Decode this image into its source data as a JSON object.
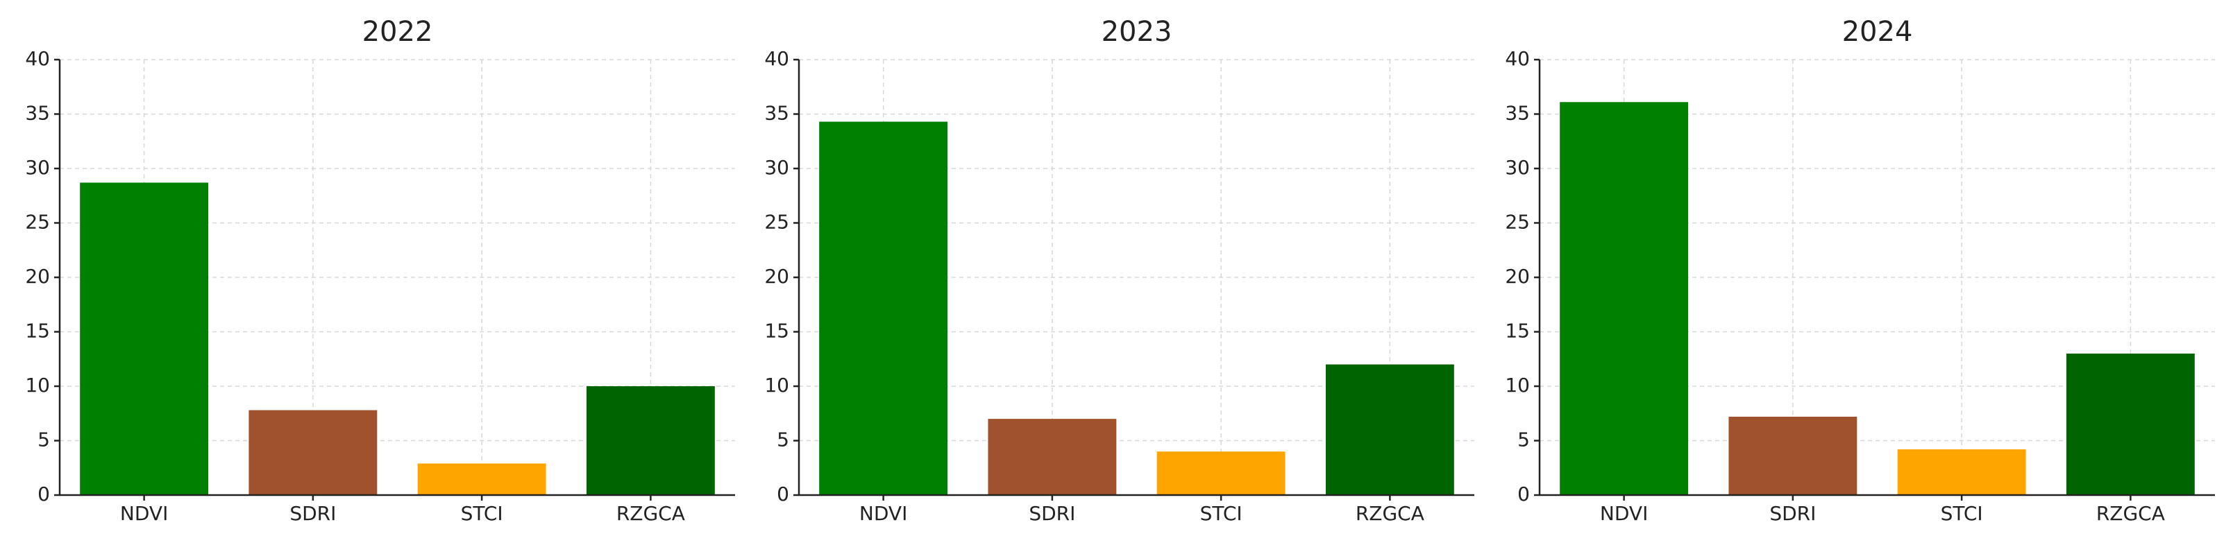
{
  "chart_data": [
    {
      "type": "bar",
      "title": "2022",
      "categories": [
        "NDVI",
        "SDRI",
        "STCI",
        "RZGCA"
      ],
      "values": [
        28.7,
        7.8,
        2.9,
        10.0
      ],
      "colors": [
        "#008000",
        "#a0522d",
        "#ffa500",
        "#006400"
      ],
      "ylim": [
        0,
        40
      ],
      "yticks": [
        0,
        5,
        10,
        15,
        20,
        25,
        30,
        35,
        40
      ],
      "grid": true
    },
    {
      "type": "bar",
      "title": "2023",
      "categories": [
        "NDVI",
        "SDRI",
        "STCI",
        "RZGCA"
      ],
      "values": [
        34.3,
        7.0,
        4.0,
        12.0
      ],
      "colors": [
        "#008000",
        "#a0522d",
        "#ffa500",
        "#006400"
      ],
      "ylim": [
        0,
        40
      ],
      "yticks": [
        0,
        5,
        10,
        15,
        20,
        25,
        30,
        35,
        40
      ],
      "grid": true
    },
    {
      "type": "bar",
      "title": "2024",
      "categories": [
        "NDVI",
        "SDRI",
        "STCI",
        "RZGCA"
      ],
      "values": [
        36.1,
        7.2,
        4.2,
        13.0
      ],
      "colors": [
        "#008000",
        "#a0522d",
        "#ffa500",
        "#006400"
      ],
      "ylim": [
        0,
        40
      ],
      "yticks": [
        0,
        5,
        10,
        15,
        20,
        25,
        30,
        35,
        40
      ],
      "grid": true
    }
  ]
}
